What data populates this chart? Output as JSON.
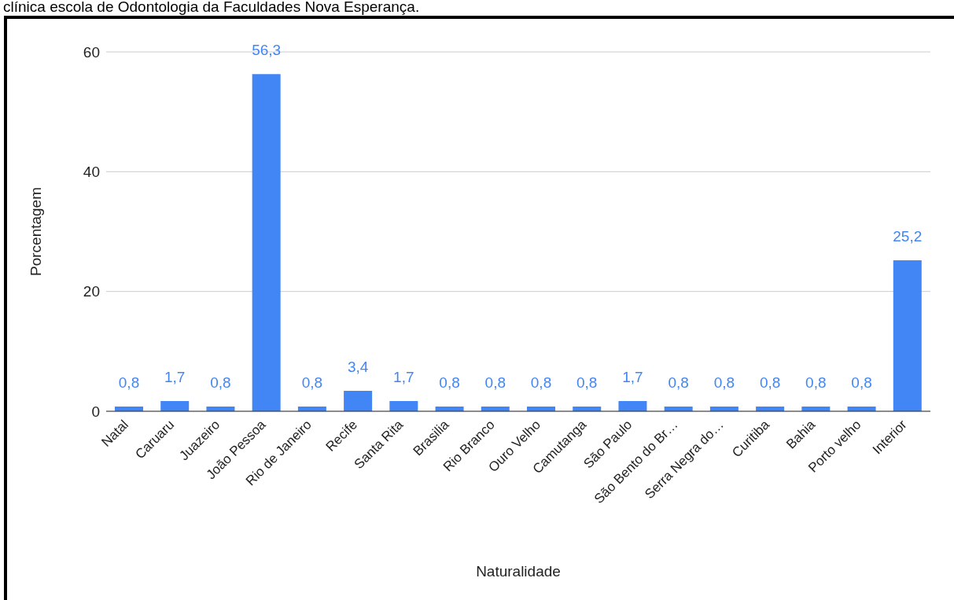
{
  "chart_data": {
    "type": "bar",
    "xlabel": "Naturalidade",
    "ylabel": "Porcentagem",
    "annotations": [
      "clínica escola de Odontologia da Faculdades Nova Esperança."
    ],
    "categories": [
      "Natal",
      "Caruaru",
      "Juazeiro",
      "João Pessoa",
      "Rio de Janeiro",
      "Recife",
      "Santa Rita",
      "Brasilia",
      "Rio Branco",
      "Ouro Velho",
      "Camutanga",
      "São Paulo",
      "São Bento do Br…",
      "Serra Negra do…",
      "Curitiba",
      "Bahia",
      "Porto velho",
      "Interior"
    ],
    "values": [
      0.8,
      1.7,
      0.8,
      56.3,
      0.8,
      3.4,
      1.7,
      0.8,
      0.8,
      0.8,
      0.8,
      1.7,
      0.8,
      0.8,
      0.8,
      0.8,
      0.8,
      25.2
    ],
    "value_labels": [
      "0,8",
      "1,7",
      "0,8",
      "56,3",
      "0,8",
      "3,4",
      "1,7",
      "0,8",
      "0,8",
      "0,8",
      "0,8",
      "1,7",
      "0,8",
      "0,8",
      "0,8",
      "0,8",
      "0,8",
      "25,2"
    ],
    "color": "#4285f4",
    "ylim": [
      0,
      60
    ],
    "yticks": [
      0,
      20,
      40,
      60
    ],
    "grid": "y"
  }
}
